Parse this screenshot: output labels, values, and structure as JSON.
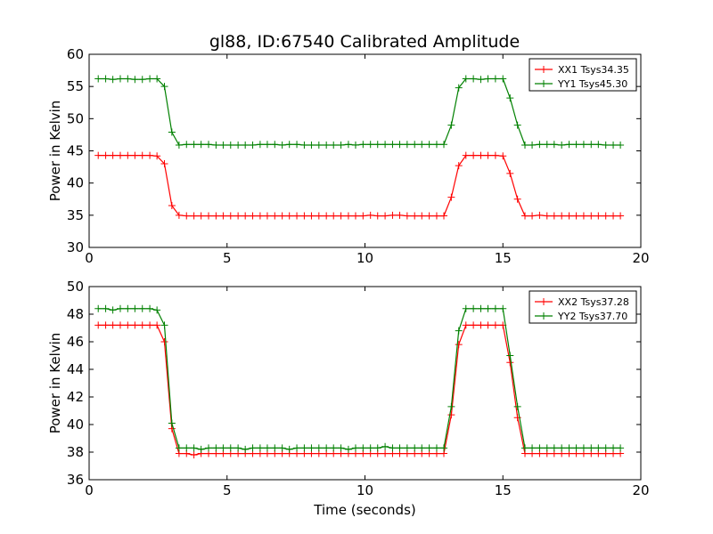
{
  "chart_data": [
    {
      "type": "line",
      "title": "gl88, ID:67540 Calibrated Amplitude",
      "xlabel": "",
      "ylabel": "Power in Kelvin",
      "xlim": [
        0,
        20
      ],
      "ylim": [
        30,
        60
      ],
      "xticks": [
        "0",
        "5",
        "10",
        "15",
        "20"
      ],
      "yticks": [
        "30",
        "35",
        "40",
        "45",
        "50",
        "55",
        "60"
      ],
      "legend_position": "top-right",
      "grid": false,
      "x": [
        0.33,
        0.6,
        0.86,
        1.13,
        1.4,
        1.66,
        1.93,
        2.2,
        2.46,
        2.73,
        3.0,
        3.26,
        3.53,
        3.8,
        4.06,
        4.33,
        4.6,
        4.86,
        5.13,
        5.4,
        5.66,
        5.93,
        6.2,
        6.46,
        6.73,
        7.0,
        7.26,
        7.53,
        7.8,
        8.06,
        8.33,
        8.6,
        8.86,
        9.13,
        9.4,
        9.66,
        9.93,
        10.2,
        10.46,
        10.73,
        11.0,
        11.26,
        11.53,
        11.8,
        12.06,
        12.33,
        12.6,
        12.86,
        13.13,
        13.4,
        13.66,
        13.93,
        14.2,
        14.46,
        14.73,
        15.0,
        15.26,
        15.53,
        15.8,
        16.06,
        16.33,
        16.6,
        16.86,
        17.13,
        17.4,
        17.66,
        17.93,
        18.2,
        18.46,
        18.73,
        19.0,
        19.26
      ],
      "series": [
        {
          "name": "XX1 Tsys34.35",
          "color": "#ff0000",
          "values": [
            44.3,
            44.3,
            44.3,
            44.3,
            44.3,
            44.3,
            44.3,
            44.3,
            44.2,
            43.0,
            36.5,
            35.0,
            34.9,
            34.9,
            34.9,
            34.9,
            34.9,
            34.9,
            34.9,
            34.9,
            34.9,
            34.9,
            34.9,
            34.9,
            34.9,
            34.9,
            34.9,
            34.9,
            34.9,
            34.9,
            34.9,
            34.9,
            34.9,
            34.9,
            34.9,
            34.9,
            34.9,
            35.0,
            34.9,
            34.9,
            35.0,
            35.0,
            34.9,
            34.9,
            34.9,
            34.9,
            34.9,
            34.9,
            37.8,
            42.7,
            44.3,
            44.3,
            44.3,
            44.3,
            44.3,
            44.2,
            41.5,
            37.5,
            34.9,
            34.9,
            35.0,
            34.9,
            34.9,
            34.9,
            34.9,
            34.9,
            34.9,
            34.9,
            34.9,
            34.9,
            34.9,
            34.9
          ]
        },
        {
          "name": "YY1 Tsys45.30",
          "color": "#008000",
          "values": [
            56.2,
            56.2,
            56.1,
            56.2,
            56.2,
            56.1,
            56.1,
            56.2,
            56.2,
            55.0,
            47.9,
            45.9,
            46.0,
            46.0,
            46.0,
            46.0,
            45.9,
            45.9,
            45.9,
            45.9,
            45.9,
            45.9,
            46.0,
            46.0,
            46.0,
            45.9,
            46.0,
            46.0,
            45.9,
            45.9,
            45.9,
            45.9,
            45.9,
            45.9,
            46.0,
            45.9,
            46.0,
            46.0,
            46.0,
            46.0,
            46.0,
            46.0,
            46.0,
            46.0,
            46.0,
            46.0,
            46.0,
            46.0,
            49.0,
            54.8,
            56.2,
            56.2,
            56.1,
            56.2,
            56.2,
            56.2,
            53.2,
            49.0,
            45.9,
            45.9,
            46.0,
            46.0,
            46.0,
            45.9,
            46.0,
            46.0,
            46.0,
            46.0,
            46.0,
            45.9,
            45.9,
            45.9
          ]
        }
      ]
    },
    {
      "type": "line",
      "title": "",
      "xlabel": "Time (seconds)",
      "ylabel": "Power in Kelvin",
      "xlim": [
        0,
        20
      ],
      "ylim": [
        36,
        50
      ],
      "xticks": [
        "0",
        "5",
        "10",
        "15",
        "20"
      ],
      "yticks": [
        "36",
        "38",
        "40",
        "42",
        "44",
        "46",
        "48",
        "50"
      ],
      "legend_position": "top-right",
      "grid": false,
      "x": [
        0.33,
        0.6,
        0.86,
        1.13,
        1.4,
        1.66,
        1.93,
        2.2,
        2.46,
        2.73,
        3.0,
        3.26,
        3.53,
        3.8,
        4.06,
        4.33,
        4.6,
        4.86,
        5.13,
        5.4,
        5.66,
        5.93,
        6.2,
        6.46,
        6.73,
        7.0,
        7.26,
        7.53,
        7.8,
        8.06,
        8.33,
        8.6,
        8.86,
        9.13,
        9.4,
        9.66,
        9.93,
        10.2,
        10.46,
        10.73,
        11.0,
        11.26,
        11.53,
        11.8,
        12.06,
        12.33,
        12.6,
        12.86,
        13.13,
        13.4,
        13.66,
        13.93,
        14.2,
        14.46,
        14.73,
        15.0,
        15.26,
        15.53,
        15.8,
        16.06,
        16.33,
        16.6,
        16.86,
        17.13,
        17.4,
        17.66,
        17.93,
        18.2,
        18.46,
        18.73,
        19.0,
        19.26
      ],
      "series": [
        {
          "name": "XX2 Tsys37.28",
          "color": "#ff0000",
          "values": [
            47.2,
            47.2,
            47.2,
            47.2,
            47.2,
            47.2,
            47.2,
            47.2,
            47.2,
            46.0,
            39.7,
            37.9,
            37.9,
            37.8,
            37.9,
            37.9,
            37.9,
            37.9,
            37.9,
            37.9,
            37.9,
            37.9,
            37.9,
            37.9,
            37.9,
            37.9,
            37.9,
            37.9,
            37.9,
            37.9,
            37.9,
            37.9,
            37.9,
            37.9,
            37.9,
            37.9,
            37.9,
            37.9,
            37.9,
            37.9,
            37.9,
            37.9,
            37.9,
            37.9,
            37.9,
            37.9,
            37.9,
            37.9,
            40.7,
            45.8,
            47.2,
            47.2,
            47.2,
            47.2,
            47.2,
            47.2,
            44.5,
            40.5,
            37.9,
            37.9,
            37.9,
            37.9,
            37.9,
            37.9,
            37.9,
            37.9,
            37.9,
            37.9,
            37.9,
            37.9,
            37.9,
            37.9
          ]
        },
        {
          "name": "YY2 Tsys37.70",
          "color": "#008000",
          "values": [
            48.4,
            48.4,
            48.3,
            48.4,
            48.4,
            48.4,
            48.4,
            48.4,
            48.3,
            47.2,
            40.1,
            38.3,
            38.3,
            38.3,
            38.2,
            38.3,
            38.3,
            38.3,
            38.3,
            38.3,
            38.2,
            38.3,
            38.3,
            38.3,
            38.3,
            38.3,
            38.2,
            38.3,
            38.3,
            38.3,
            38.3,
            38.3,
            38.3,
            38.3,
            38.2,
            38.3,
            38.3,
            38.3,
            38.3,
            38.4,
            38.3,
            38.3,
            38.3,
            38.3,
            38.3,
            38.3,
            38.3,
            38.3,
            41.3,
            46.8,
            48.4,
            48.4,
            48.4,
            48.4,
            48.4,
            48.4,
            45.0,
            41.3,
            38.3,
            38.3,
            38.3,
            38.3,
            38.3,
            38.3,
            38.3,
            38.3,
            38.3,
            38.3,
            38.3,
            38.3,
            38.3,
            38.3
          ]
        }
      ]
    }
  ]
}
